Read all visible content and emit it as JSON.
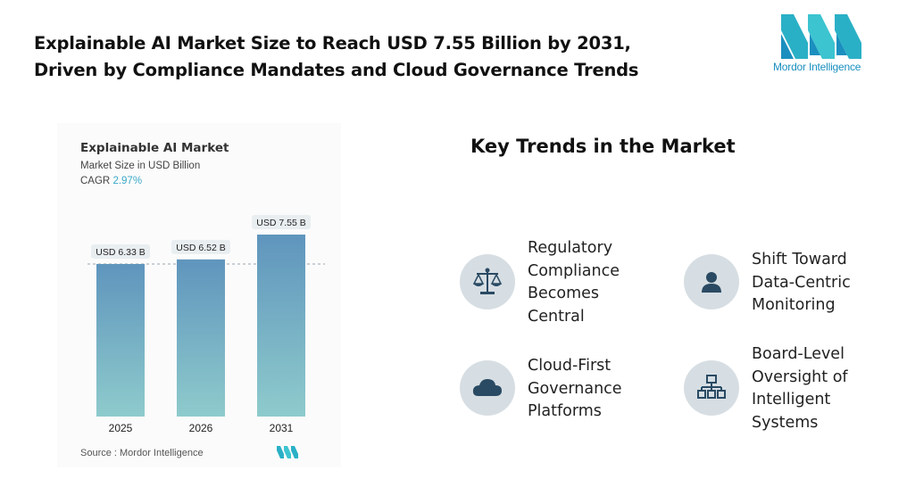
{
  "headline": {
    "line1": "Explainable AI Market Size to Reach USD 7.55 Billion by 2031,",
    "line2": "Driven by Compliance Mandates and Cloud Governance Trends"
  },
  "brand": {
    "name": "Mordor Intelligence"
  },
  "chart": {
    "title": "Explainable AI Market",
    "subtitle": "Market Size in USD Billion",
    "cagr_label": "CAGR",
    "cagr_value": "2.97%",
    "source": "Source :  Mordor Intelligence"
  },
  "chart_data": {
    "type": "bar",
    "title": "Explainable AI Market",
    "ylabel": "Market Size in USD Billion",
    "categories": [
      "2025",
      "2026",
      "2031"
    ],
    "values": [
      6.33,
      6.52,
      7.55
    ],
    "data_labels": [
      "USD 6.33 B",
      "USD 6.52 B",
      "USD 7.55 B"
    ],
    "ylim": [
      0,
      7.55
    ],
    "reference_line": 6.33,
    "grid": false
  },
  "trends": {
    "title": "Key Trends in the Market",
    "items": [
      {
        "label": "Regulatory\nCompliance\nBecomes\nCentral",
        "icon": "scales-icon"
      },
      {
        "label": "Shift Toward\nData-Centric\nMonitoring",
        "icon": "person-icon"
      },
      {
        "label": "Cloud-First\nGovernance\nPlatforms",
        "icon": "cloud-icon"
      },
      {
        "label": "Board-Level\nOversight of\nIntelligent\nSystems",
        "icon": "hierarchy-icon"
      }
    ]
  },
  "colors": {
    "bar_top": "#5f95bd",
    "bar_bottom": "#8ecbcc",
    "label_bg": "#e9eef1",
    "icon_bg": "#d6dee3",
    "icon_fg": "#2a4a63",
    "brand_teal": "#3cc4d0",
    "brand_blue": "#1a8fbf"
  }
}
